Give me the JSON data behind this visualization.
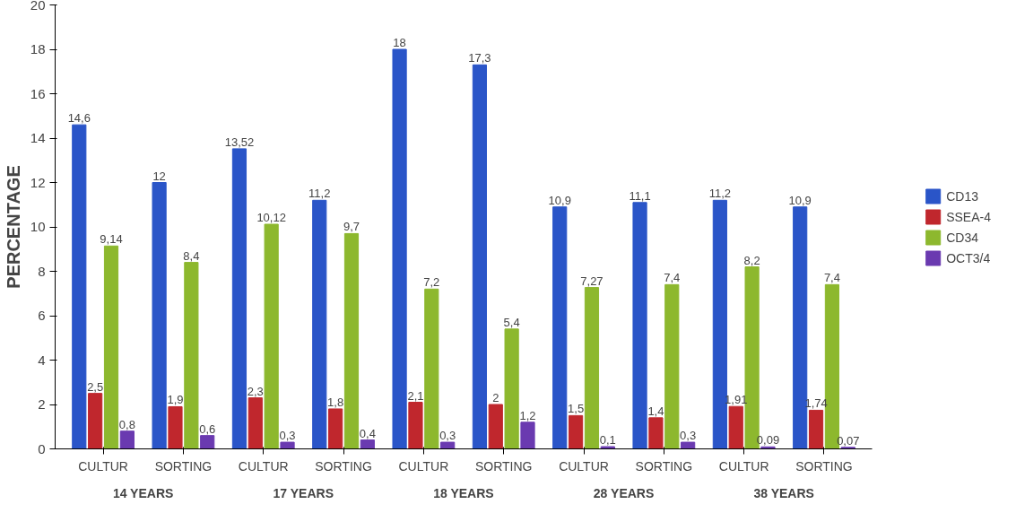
{
  "chart_data": {
    "type": "bar",
    "ylabel": "PERCENTAGE",
    "categories": [
      "CULTUR",
      "SORTING",
      "CULTUR",
      "SORTING",
      "CULTUR",
      "SORTING",
      "CULTUR",
      "SORTING",
      "CULTUR",
      "SORTING"
    ],
    "annotations": [
      "14 YEARS",
      "17 YEARS",
      "18 YEARS",
      "28 YEARS",
      "38 YEARS"
    ],
    "series": [
      {
        "name": "CD13",
        "color": "#2a55c8",
        "values": [
          14.6,
          12,
          13.52,
          11.2,
          18,
          17.3,
          10.9,
          11.1,
          11.2,
          10.9
        ],
        "value_labels": [
          "14,6",
          "12",
          "13,52",
          "11,2",
          "18",
          "17,3",
          "10,9",
          "11,1",
          "11,2",
          "10,9"
        ]
      },
      {
        "name": "SSEA-4",
        "color": "#c0272d",
        "values": [
          2.5,
          1.9,
          2.3,
          1.8,
          2.1,
          2,
          1.5,
          1.4,
          1.91,
          1.74
        ],
        "value_labels": [
          "2,5",
          "1,9",
          "2,3",
          "1,8",
          "2,1",
          "2",
          "1,5",
          "1,4",
          "1,91",
          "1,74"
        ]
      },
      {
        "name": "CD34",
        "color": "#8db82e",
        "values": [
          9.14,
          8.4,
          10.12,
          9.7,
          7.2,
          5.4,
          7.27,
          7.4,
          8.2,
          7.4
        ],
        "value_labels": [
          "9,14",
          "8,4",
          "10,12",
          "9,7",
          "7,2",
          "5,4",
          "7,27",
          "7,4",
          "8,2",
          "7,4"
        ]
      },
      {
        "name": "OCT3/4",
        "color": "#6a3ab0",
        "values": [
          0.8,
          0.6,
          0.3,
          0.4,
          0.3,
          1.2,
          0.1,
          0.3,
          0.09,
          0.07
        ],
        "value_labels": [
          "0,8",
          "0,6",
          "0,3",
          "0,4",
          "0,3",
          "1,2",
          "0,1",
          "0,3",
          "0,09",
          "0,07"
        ]
      }
    ],
    "ylim": [
      0,
      20
    ],
    "yticks": [
      0,
      2,
      4,
      6,
      8,
      10,
      12,
      14,
      16,
      18,
      20
    ],
    "grid": false,
    "legend": "right"
  }
}
